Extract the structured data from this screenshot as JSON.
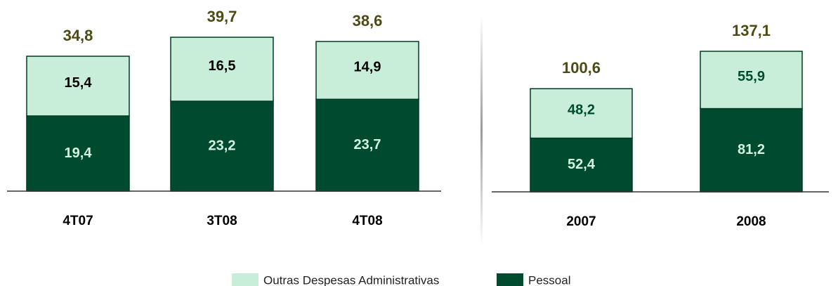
{
  "chart_data": [
    {
      "type": "stacked_bar",
      "categories": [
        "4T07",
        "3T08",
        "4T08"
      ],
      "series": [
        {
          "name": "Pessoal",
          "color": "#004a2f",
          "label_color": "#d4f2e0",
          "values": [
            19.4,
            23.2,
            23.7
          ],
          "value_labels": [
            "19,4",
            "23,2",
            "23,7"
          ]
        },
        {
          "name": "Outras  Despesas Administrativas",
          "color": "#c8eed9",
          "label_color": "#000000",
          "values": [
            15.4,
            16.5,
            14.9
          ],
          "value_labels": [
            "15,4",
            "16,5",
            "14,9"
          ]
        }
      ],
      "totals": [
        34.8,
        39.7,
        38.6
      ],
      "total_labels": [
        "34,8",
        "39,7",
        "38,6"
      ],
      "total_color": "#4d4a14"
    },
    {
      "type": "stacked_bar",
      "categories": [
        "2007",
        "2008"
      ],
      "series": [
        {
          "name": "Pessoal",
          "color": "#004a2f",
          "label_color": "#d4f2e0",
          "values": [
            52.4,
            81.2
          ],
          "value_labels": [
            "52,4",
            "81,2"
          ]
        },
        {
          "name": "Outras  Despesas Administrativas",
          "color": "#c8eed9",
          "label_color": "#004a2f",
          "values": [
            48.2,
            55.9
          ],
          "value_labels": [
            "48,2",
            "55,9"
          ]
        }
      ],
      "totals": [
        100.6,
        137.1
      ],
      "total_labels": [
        "100,6",
        "137,1"
      ],
      "total_color": "#4d4a14"
    }
  ]
}
